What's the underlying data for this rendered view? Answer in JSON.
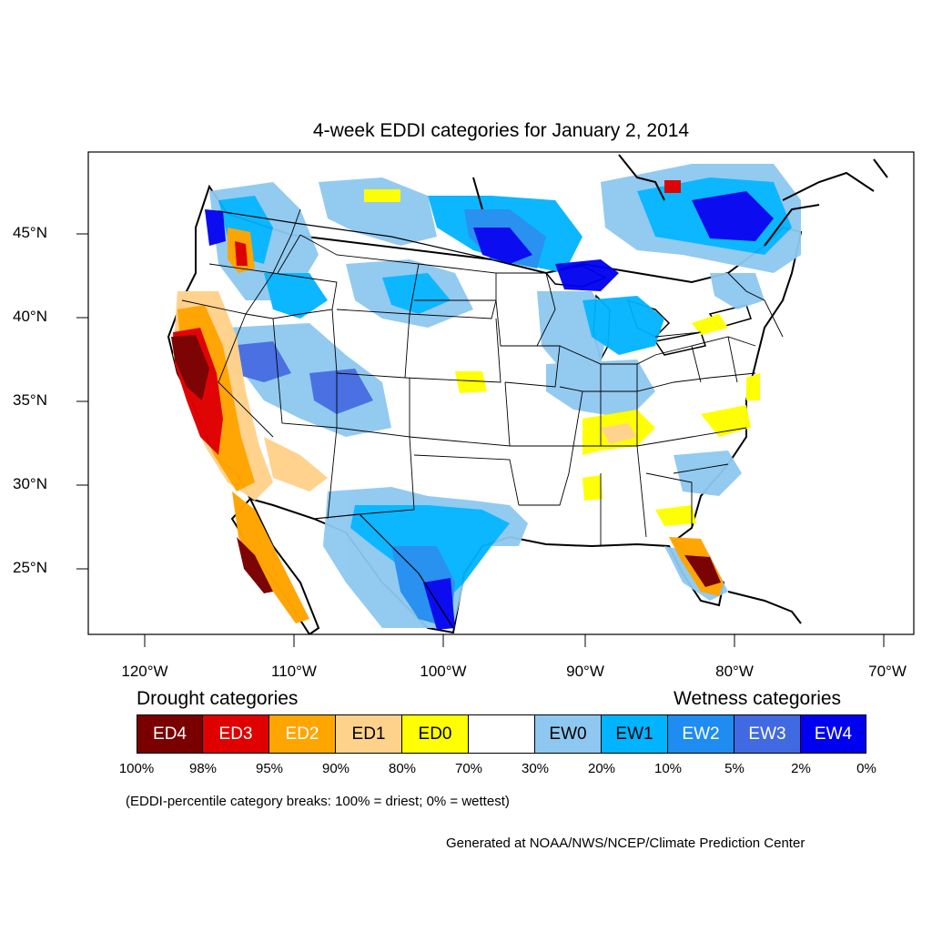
{
  "title": "4-week EDDI categories for January 2, 2014",
  "lat_labels": [
    "45°N",
    "40°N",
    "35°N",
    "30°N",
    "25°N"
  ],
  "lon_labels": [
    "120°W",
    "110°W",
    "100°W",
    "90°W",
    "80°W",
    "70°W"
  ],
  "drought_heading": "Drought categories",
  "wetness_heading": "Wetness categories",
  "legend": [
    {
      "label": "ED4",
      "color": "#7a0000",
      "text_color": "#ffffff"
    },
    {
      "label": "ED3",
      "color": "#e00000",
      "text_color": "#ffffff"
    },
    {
      "label": "ED2",
      "color": "#ffa500",
      "text_color": "#ffffff"
    },
    {
      "label": "ED1",
      "color": "#ffd28c",
      "text_color": "#000000"
    },
    {
      "label": "ED0",
      "color": "#ffff00",
      "text_color": "#000000"
    },
    {
      "label": "",
      "color": "#ffffff",
      "text_color": "#000000"
    },
    {
      "label": "EW0",
      "color": "#8ec8f0",
      "text_color": "#000000"
    },
    {
      "label": "EW1",
      "color": "#00b4ff",
      "text_color": "#000000"
    },
    {
      "label": "EW2",
      "color": "#1e8cf0",
      "text_color": "#ffffff"
    },
    {
      "label": "EW3",
      "color": "#4169e1",
      "text_color": "#ffffff"
    },
    {
      "label": "EW4",
      "color": "#0000f0",
      "text_color": "#ffffff"
    }
  ],
  "percentiles": [
    "100%",
    "98%",
    "95%",
    "90%",
    "80%",
    "70%",
    "30%",
    "20%",
    "10%",
    "5%",
    "2%",
    "0%"
  ],
  "note": "(EDDI-percentile category breaks: 100% = driest; 0% = wettest)",
  "credit": "Generated at NOAA/NWS/NCEP/Climate Prediction Center"
}
